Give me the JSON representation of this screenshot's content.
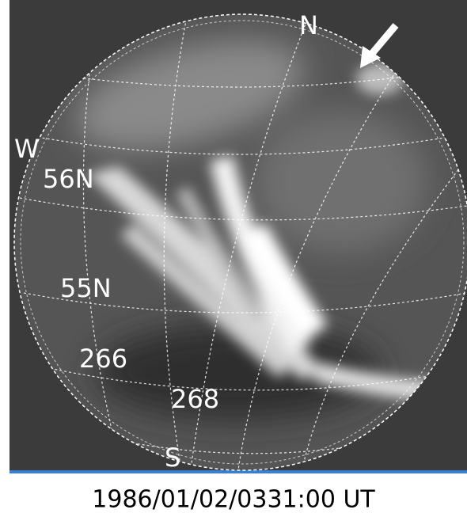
{
  "image": {
    "labels": {
      "north": "N",
      "west": "W",
      "south": "S",
      "lat_56": "56N",
      "lat_55": "55N",
      "lon_266": "266",
      "lon_268": "268"
    },
    "caption": "1986/01/02/0331:00 UT"
  }
}
